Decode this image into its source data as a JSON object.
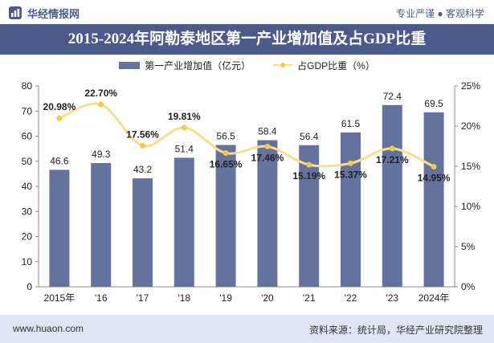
{
  "header": {
    "brand": "华经情报网",
    "tagline": "专业严谨 ● 客观科学"
  },
  "title": "2015-2024年阿勒泰地区第一产业增加值及占GDP比重",
  "legend": {
    "bar": "第一产业增加值（亿元）",
    "line": "占GDP比重（%）"
  },
  "footer": {
    "website": "www.huaon.com",
    "source": "资料来源：统计局，华经产业研究院整理"
  },
  "colors": {
    "bar": "#64739e",
    "line": "#f7df8d",
    "marker": "#f2c94c",
    "title_bg": "#4b5a8b",
    "footer_bg": "#dfe5f1"
  },
  "chart_data": {
    "type": "bar+line",
    "categories": [
      "2015年",
      "'16",
      "'17",
      "'18",
      "'19",
      "'20",
      "'21",
      "'22",
      "'23",
      "2024年"
    ],
    "series": [
      {
        "name": "第一产业增加值（亿元）",
        "type": "bar",
        "axis": "left",
        "values": [
          46.6,
          49.3,
          43.2,
          51.4,
          56.5,
          58.4,
          56.4,
          61.5,
          72.4,
          69.5
        ],
        "labels": [
          "46.6",
          "49.3",
          "43.2",
          "51.4",
          "56.5",
          "58.4",
          "56.4",
          "61.5",
          "72.4",
          "69.5"
        ]
      },
      {
        "name": "占GDP比重（%）",
        "type": "line",
        "axis": "right",
        "values": [
          20.98,
          22.7,
          17.56,
          19.81,
          16.65,
          17.46,
          15.19,
          15.37,
          17.21,
          14.95
        ],
        "labels": [
          "20.98%",
          "22.70%",
          "17.56%",
          "19.81%",
          "16.65%",
          "17.46%",
          "15.19%",
          "15.37%",
          "17.21%",
          "14.95%"
        ]
      }
    ],
    "y_left": {
      "min": 0,
      "max": 80,
      "step": 10,
      "ticks": [
        "0",
        "10",
        "20",
        "30",
        "40",
        "50",
        "60",
        "70",
        "80"
      ]
    },
    "y_right": {
      "min": 0,
      "max": 25,
      "step": 5,
      "ticks": [
        "0%",
        "5%",
        "10%",
        "15%",
        "20%",
        "25%"
      ]
    },
    "grid": false,
    "legend_position": "top"
  }
}
